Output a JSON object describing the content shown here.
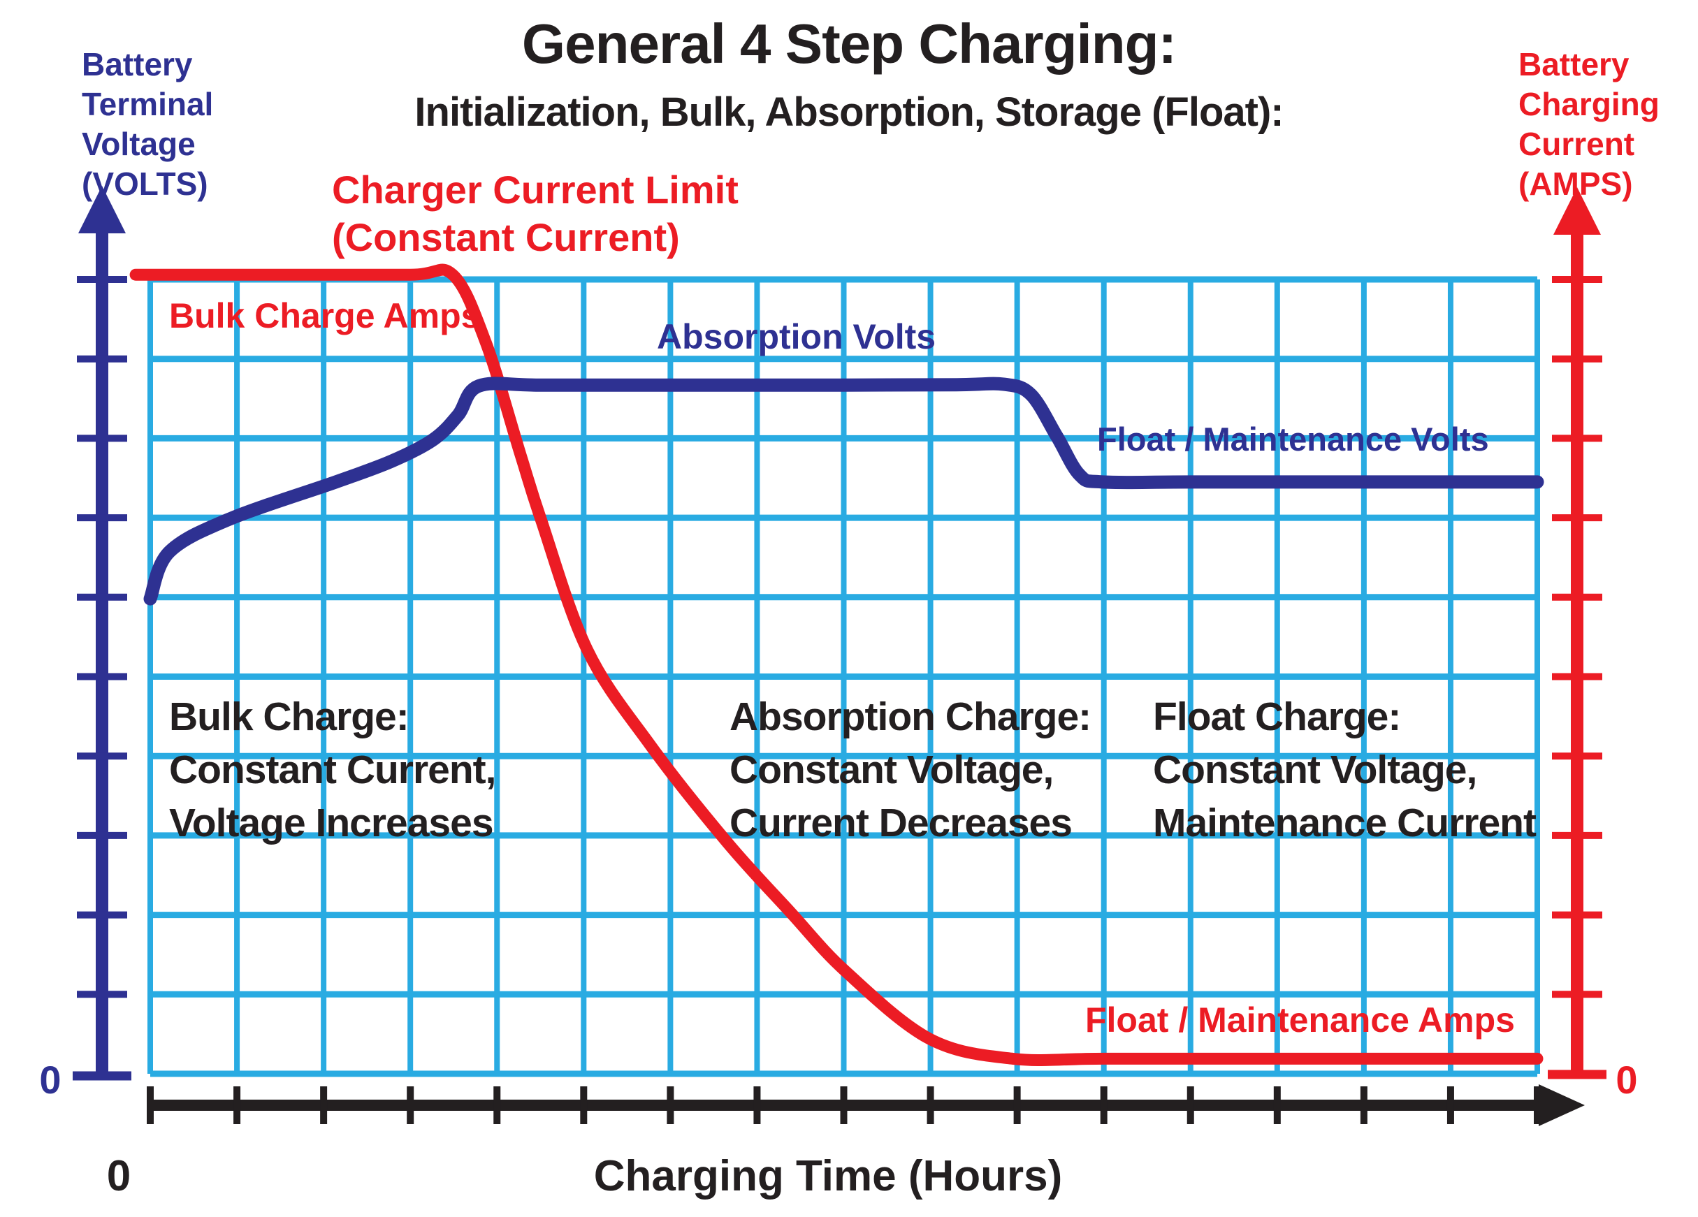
{
  "title": "General 4 Step Charging:",
  "subtitle": "Initialization, Bulk, Absorption, Storage (Float):",
  "left_axis": {
    "label": "Battery\nTerminal\nVoltage\n(VOLTS)",
    "origin_label": "0"
  },
  "right_axis": {
    "label": "Battery\nCharging\nCurrent\n(AMPS)",
    "origin_label": "0"
  },
  "x_axis": {
    "label": "Charging Time (Hours)",
    "origin_label": "0"
  },
  "annotations": {
    "charger_current_limit": "Charger Current Limit\n(Constant Current)",
    "bulk_charge_amps": "Bulk Charge Amps",
    "absorption_volts": "Absorption Volts",
    "float_maintenance_volts": "Float / Maintenance Volts",
    "float_maintenance_amps": "Float / Maintenance Amps",
    "stage_bulk": "Bulk Charge:\nConstant Current,\nVoltage Increases",
    "stage_absorption": "Absorption Charge:\nConstant Voltage,\nCurrent Decreases",
    "stage_float": "Float Charge:\nConstant Voltage,\nMaintenance Current"
  },
  "colors": {
    "current_red": "#EC1C24",
    "voltage_blue": "#2E3192",
    "grid_cyan": "#29ABE2",
    "axis_black": "#231F20"
  },
  "chart_data": {
    "type": "line",
    "title": "General 4 Step Charging: Initialization, Bulk, Absorption, Storage (Float)",
    "xlabel": "Charging Time (Hours)",
    "ylabel_left": "Battery Terminal Voltage (VOLTS)",
    "ylabel_right": "Battery Charging Current (AMPS)",
    "x_range_grid_units": [
      0,
      16
    ],
    "y_range_percent": [
      0,
      100
    ],
    "x_tick_labels": [
      "0"
    ],
    "y_tick_labels_left": [
      "0"
    ],
    "y_tick_labels_right": [
      "0"
    ],
    "grid": {
      "columns": 16,
      "rows": 10,
      "on": true
    },
    "legend_position": "none",
    "series": [
      {
        "name": "Battery Terminal Voltage (VOLTS)",
        "color": "#2E3192",
        "points": [
          [
            0,
            59.8
          ],
          [
            0.22,
            65.7
          ],
          [
            0.93,
            69.9
          ],
          [
            2.14,
            74.5
          ],
          [
            2.78,
            77.1
          ],
          [
            3.26,
            79.8
          ],
          [
            3.55,
            82.9
          ],
          [
            3.79,
            86.6
          ],
          [
            4.5,
            86.7
          ],
          [
            6,
            86.7
          ],
          [
            8,
            86.7
          ],
          [
            9.3,
            86.75
          ],
          [
            9.85,
            86.8
          ],
          [
            10.16,
            85.5
          ],
          [
            10.46,
            80.2
          ],
          [
            10.72,
            75.4
          ],
          [
            10.99,
            74.5
          ],
          [
            12,
            74.5
          ],
          [
            14,
            74.5
          ],
          [
            16,
            74.5
          ]
        ],
        "annotations": [
          "Absorption Volts ~86.7% of scale",
          "Float / Maintenance Volts ~74.5% of scale",
          "start ~59.8% of scale"
        ]
      },
      {
        "name": "Battery Charging Current (AMPS)",
        "color": "#EC1C24",
        "points": [
          [
            -0.15,
            100.6
          ],
          [
            0,
            100.6
          ],
          [
            1.5,
            100.6
          ],
          [
            3,
            100.6
          ],
          [
            3.49,
            100.6
          ],
          [
            3.87,
            92.1
          ],
          [
            4.27,
            78.0
          ],
          [
            4.51,
            69.7
          ],
          [
            5.04,
            53.4
          ],
          [
            5.76,
            41.5
          ],
          [
            6.65,
            29.2
          ],
          [
            7.38,
            20.4
          ],
          [
            8.02,
            12.9
          ],
          [
            8.99,
            4.4
          ],
          [
            9.95,
            1.9
          ],
          [
            11,
            1.9
          ],
          [
            13,
            1.9
          ],
          [
            16,
            1.9
          ]
        ],
        "annotations": [
          "Charger Current Limit (Constant Current) = 100% until ~3.5 time units",
          "Float / Maintenance Amps ~1.9% of scale"
        ]
      }
    ]
  }
}
